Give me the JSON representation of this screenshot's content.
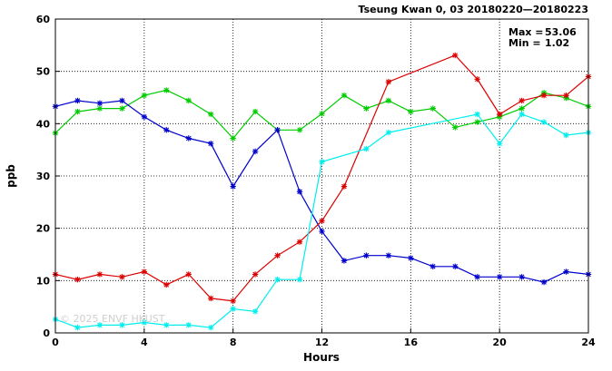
{
  "chart_data": {
    "type": "line",
    "title": "Tseung Kwan 0, 03 20180220—20180223",
    "xlabel": "Hours",
    "ylabel": "ppb",
    "xlim": [
      0,
      24
    ],
    "ylim": [
      0,
      60
    ],
    "x_ticks": [
      0,
      4,
      8,
      12,
      16,
      20,
      24
    ],
    "y_ticks": [
      0,
      10,
      20,
      30,
      40,
      50,
      60
    ],
    "grid": true,
    "stats": {
      "max_label": "Max =",
      "max_value": "53.06",
      "min_label": "Min =",
      "min_value": "1.02"
    },
    "watermark": "© 2025  ENVF  HKUST",
    "marker": "asterisk",
    "x": [
      0,
      1,
      2,
      3,
      4,
      5,
      6,
      7,
      8,
      9,
      10,
      11,
      12,
      13,
      14,
      15,
      16,
      17,
      18,
      19,
      20,
      21,
      22,
      23,
      24
    ],
    "series": [
      {
        "color": "#00cc00",
        "values": [
          38.2,
          42.3,
          42.9,
          42.9,
          45.4,
          46.4,
          44.4,
          41.8,
          37.2,
          42.3,
          38.8,
          38.8,
          41.9,
          45.4,
          42.9,
          44.4,
          42.3,
          42.9,
          39.3,
          40.3,
          41.3,
          42.9,
          45.9,
          44.9,
          43.3
        ]
      },
      {
        "color": "#0000cc",
        "values": [
          43.3,
          44.4,
          43.9,
          44.4,
          41.3,
          38.8,
          37.2,
          36.2,
          28.0,
          34.7,
          38.8,
          27.0,
          19.4,
          13.8,
          14.8,
          14.8,
          14.3,
          12.7,
          12.7,
          10.7,
          10.7,
          10.7,
          9.7,
          11.7,
          11.2
        ]
      },
      {
        "color": "#dd0000",
        "values": [
          11.2,
          10.2,
          11.2,
          10.7,
          11.7,
          9.2,
          11.2,
          6.6,
          6.1,
          11.2,
          14.8,
          17.4,
          21.4,
          28.0,
          null,
          48.0,
          null,
          null,
          53.06,
          48.5,
          41.8,
          44.4,
          45.4,
          45.4,
          49.0
        ]
      },
      {
        "color": "#00eeee",
        "values": [
          2.6,
          1.02,
          1.5,
          1.5,
          2.0,
          1.5,
          1.5,
          1.02,
          4.6,
          4.1,
          10.2,
          10.2,
          32.7,
          null,
          35.2,
          38.3,
          null,
          null,
          null,
          41.8,
          36.2,
          41.8,
          40.3,
          37.8,
          38.3
        ]
      }
    ]
  }
}
